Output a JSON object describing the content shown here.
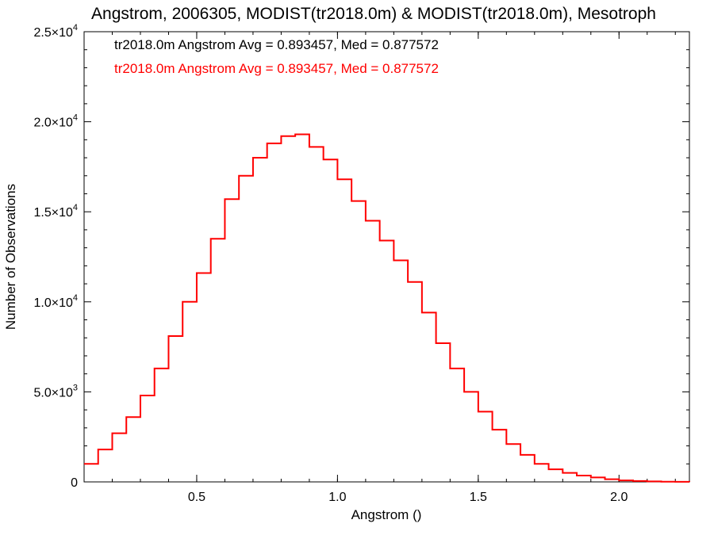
{
  "chart_data": {
    "type": "line",
    "title": "Angstrom, 2006305, MODIST(tr2018.0m) & MODIST(tr2018.0m), Mesotroph",
    "xlabel": "Angstrom ()",
    "ylabel": "Number of Observations",
    "xlim": [
      0.1,
      2.25
    ],
    "ylim": [
      0,
      25000
    ],
    "x_ticks": [
      {
        "value": 0.5,
        "label": "0.5"
      },
      {
        "value": 1.0,
        "label": "1.0"
      },
      {
        "value": 1.5,
        "label": "1.5"
      },
      {
        "value": 2.0,
        "label": "2.0"
      }
    ],
    "y_ticks": [
      {
        "value": 0,
        "mant": "0",
        "exp": ""
      },
      {
        "value": 5000,
        "mant": "5.0×10",
        "exp": "3"
      },
      {
        "value": 10000,
        "mant": "1.0×10",
        "exp": "4"
      },
      {
        "value": 15000,
        "mant": "1.5×10",
        "exp": "4"
      },
      {
        "value": 20000,
        "mant": "2.0×10",
        "exp": "4"
      },
      {
        "value": 25000,
        "mant": "2.5×10",
        "exp": "4"
      }
    ],
    "annotations": [
      {
        "text": "tr2018.0m Angstrom Avg = 0.893457, Med = 0.877572",
        "color": "#000000"
      },
      {
        "text": "tr2018.0m Angstrom Avg = 0.893457, Med = 0.877572",
        "color": "#ff0000"
      }
    ],
    "series": [
      {
        "color": "#ff0000",
        "style": "step",
        "x": [
          0.1,
          0.15,
          0.2,
          0.25,
          0.3,
          0.35,
          0.4,
          0.45,
          0.5,
          0.55,
          0.6,
          0.65,
          0.7,
          0.75,
          0.8,
          0.85,
          0.9,
          0.95,
          1.0,
          1.05,
          1.1,
          1.15,
          1.2,
          1.25,
          1.3,
          1.35,
          1.4,
          1.45,
          1.5,
          1.55,
          1.6,
          1.65,
          1.7,
          1.75,
          1.8,
          1.85,
          1.9,
          1.95,
          2.0,
          2.05,
          2.1,
          2.15,
          2.2,
          2.25
        ],
        "y": [
          1000,
          1800,
          2700,
          3600,
          4800,
          6300,
          8100,
          10000,
          11600,
          13500,
          15700,
          17000,
          18000,
          18800,
          19200,
          19300,
          18600,
          17900,
          16800,
          15600,
          14500,
          13400,
          12300,
          11100,
          9400,
          7700,
          6300,
          5000,
          3900,
          2900,
          2100,
          1500,
          1000,
          700,
          500,
          350,
          250,
          150,
          80,
          50,
          30,
          10,
          5,
          0
        ]
      }
    ]
  }
}
